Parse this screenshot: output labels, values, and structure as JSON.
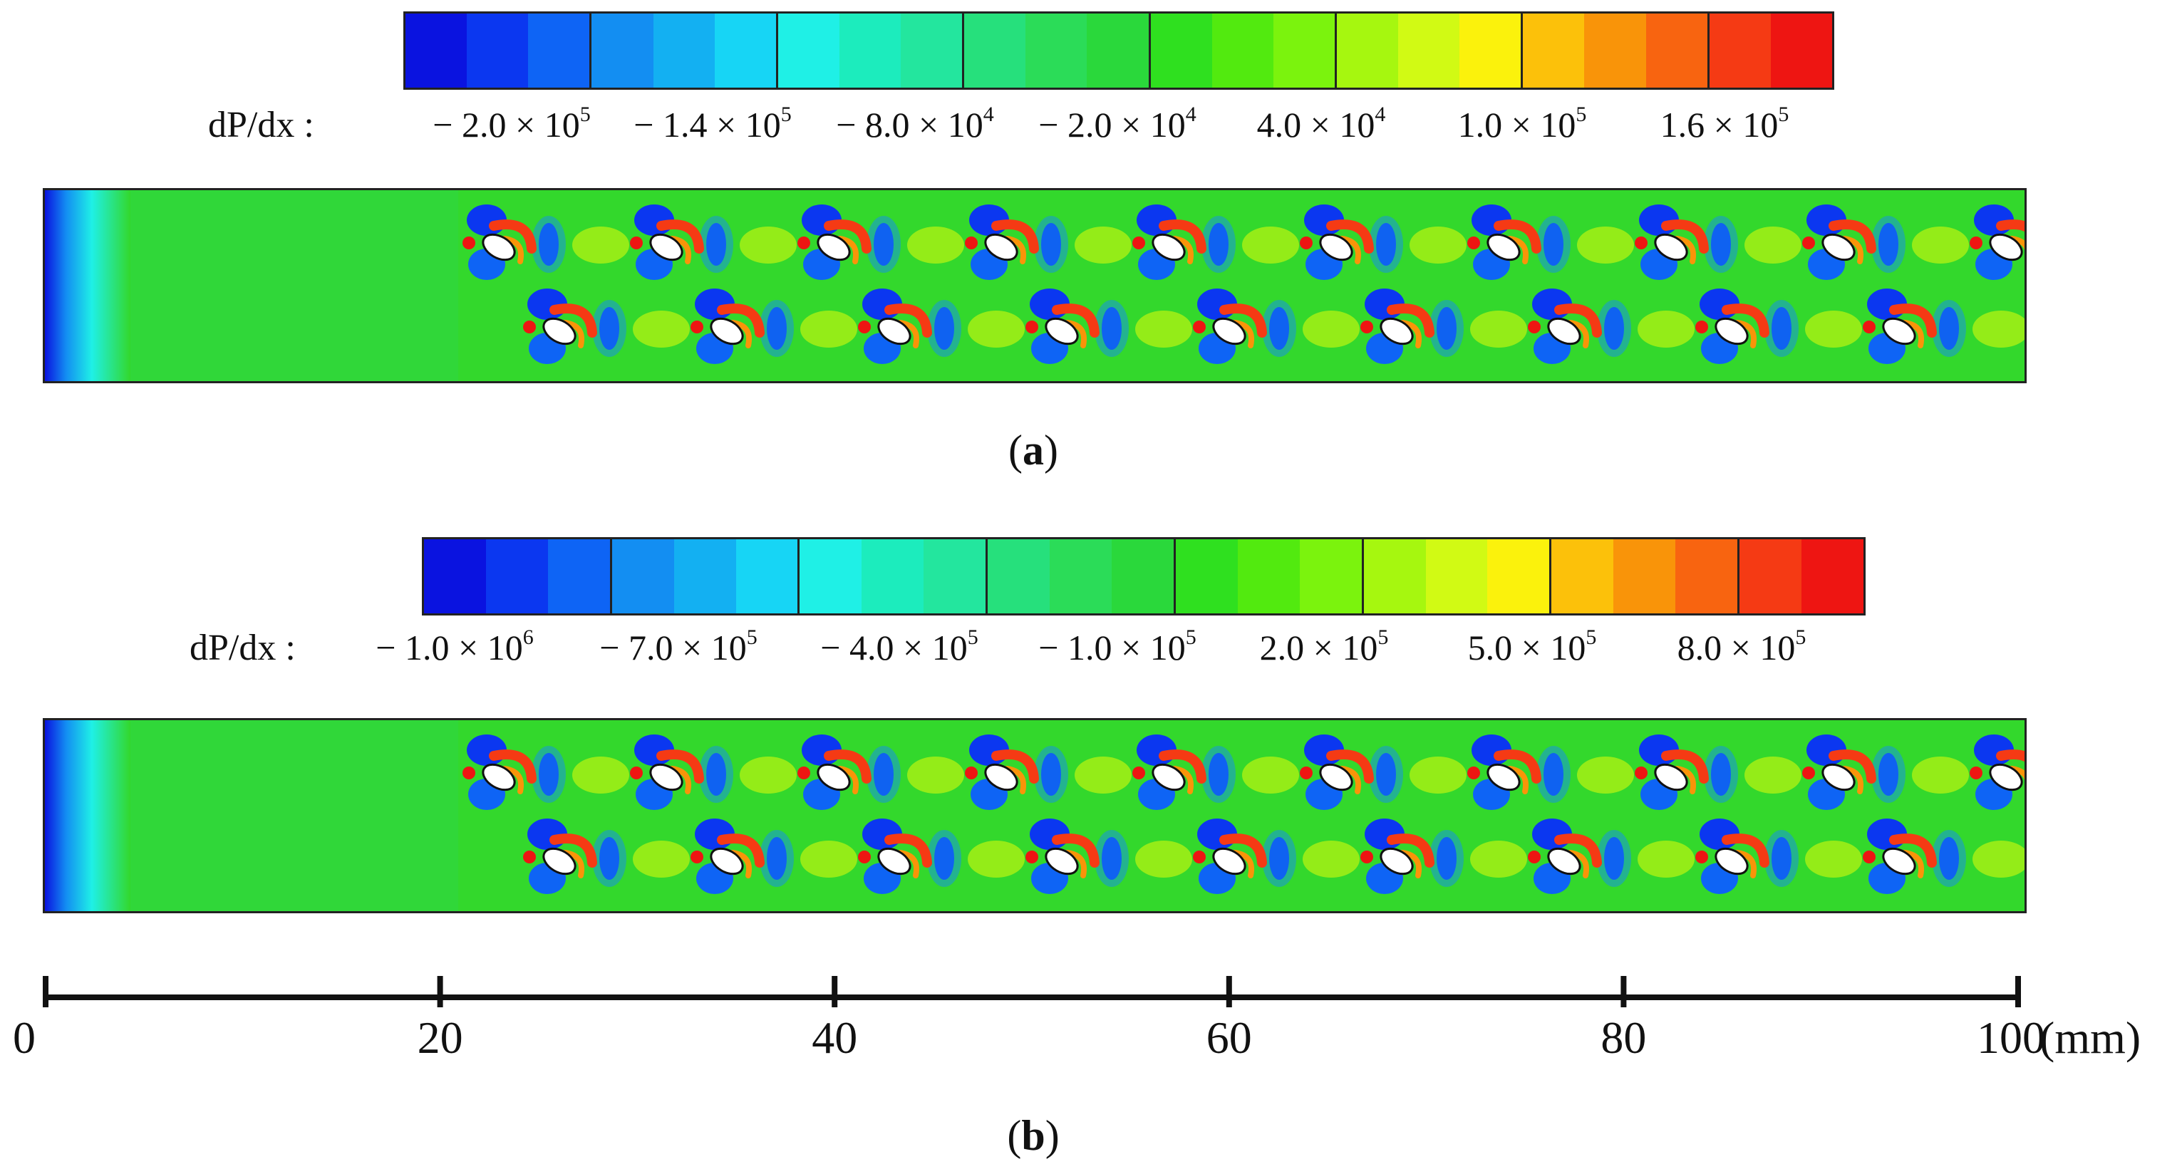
{
  "panel_a": {
    "colorbar_label": "dP/dx :",
    "ticks": [
      {
        "mant": "− 2.0 × 10",
        "exp": "5"
      },
      {
        "mant": "− 1.4 × 10",
        "exp": "5"
      },
      {
        "mant": "− 8.0 × 10",
        "exp": "4"
      },
      {
        "mant": "− 2.0 × 10",
        "exp": "4"
      },
      {
        "mant": "4.0 × 10",
        "exp": "4"
      },
      {
        "mant": "1.0 × 10",
        "exp": "5"
      },
      {
        "mant": "1.6 × 10",
        "exp": "5"
      }
    ],
    "caption": "a"
  },
  "panel_b": {
    "colorbar_label": "dP/dx :",
    "ticks": [
      {
        "mant": "− 1.0 × 10",
        "exp": "6"
      },
      {
        "mant": "− 7.0 × 10",
        "exp": "5"
      },
      {
        "mant": "− 4.0 × 10",
        "exp": "5"
      },
      {
        "mant": "− 1.0 × 10",
        "exp": "5"
      },
      {
        "mant": "2.0 × 10",
        "exp": "5"
      },
      {
        "mant": "5.0 × 10",
        "exp": "5"
      },
      {
        "mant": "8.0 × 10",
        "exp": "5"
      }
    ],
    "caption": "b"
  },
  "colormap": [
    "#0a13e0",
    "#0b37f0",
    "#0e64f5",
    "#138ef2",
    "#13b0f2",
    "#17d5f5",
    "#1ff0e6",
    "#1cecbd",
    "#23e69e",
    "#26e07c",
    "#2bdc58",
    "#2ad83b",
    "#2fe01f",
    "#52ea0f",
    "#7bf30d",
    "#a6f70f",
    "#d1fa14",
    "#fbf20c",
    "#fcc10a",
    "#f99409",
    "#f86410",
    "#f53a14",
    "#ee1512"
  ],
  "scale": {
    "ticks": [
      "0",
      "20",
      "40",
      "60",
      "80",
      "100"
    ],
    "unit": "(mm)"
  },
  "obstacles": {
    "top_row_count": 10,
    "bottom_row_count": 9
  }
}
